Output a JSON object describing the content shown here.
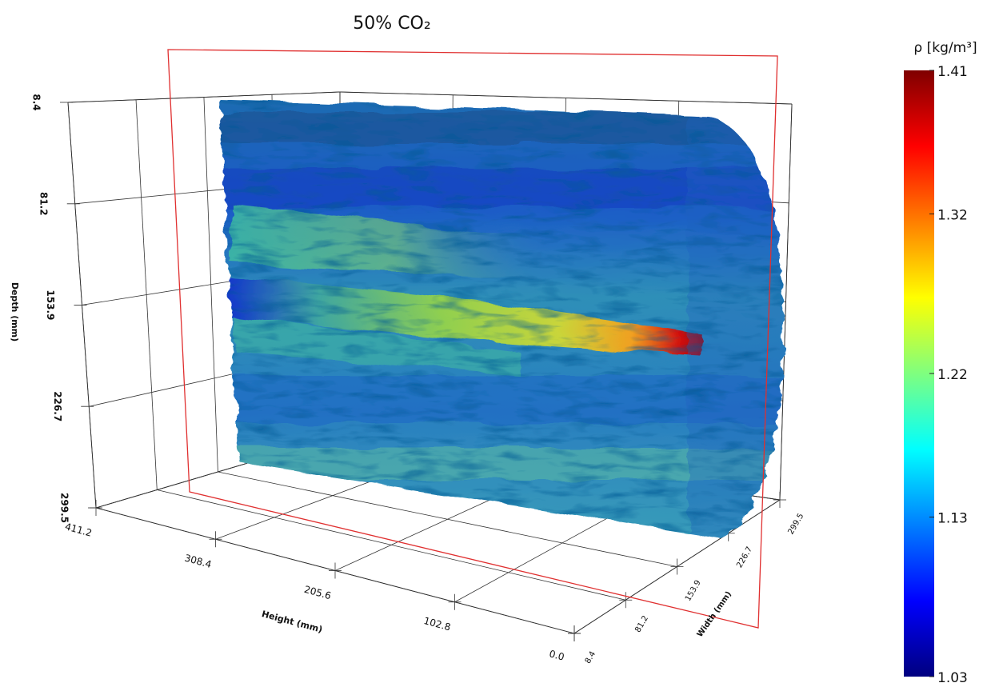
{
  "chart_data": {
    "type": "volume",
    "title": "50% CO₂",
    "axes": {
      "depth": {
        "label": "Depth (mm)",
        "lim": [
          8.4,
          299.5
        ],
        "ticks": [
          8.4,
          81.2,
          153.9,
          226.7,
          299.5
        ]
      },
      "height": {
        "label": "Height (mm)",
        "lim": [
          411.2,
          0
        ],
        "ticks": [
          411.2,
          308.4,
          205.6,
          102.8,
          {
            "value": 0,
            "label": "0.0"
          }
        ]
      },
      "width": {
        "label": "Width (mm)",
        "lim": [
          8.4,
          299.5
        ],
        "ticks": [
          8.4,
          81.2,
          153.9,
          226.7,
          299.5
        ]
      }
    },
    "colorbar": {
      "label": "ρ [kg/m³]",
      "lim": [
        1.03,
        1.41
      ],
      "ticks": [
        1.03,
        1.13,
        1.22,
        1.32,
        1.41
      ],
      "colormap": "jet"
    }
  }
}
